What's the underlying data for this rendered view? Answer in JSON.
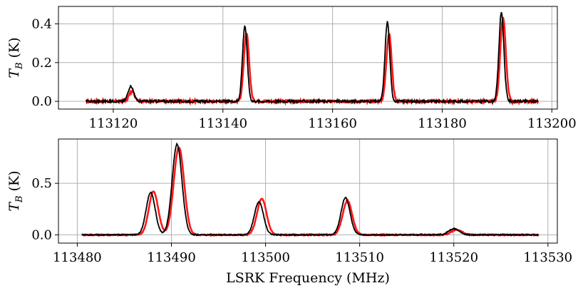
{
  "chart_data": [
    {
      "type": "line",
      "title": "",
      "xlabel": "",
      "ylabel": "T_B (K)",
      "ylabel_main": "T",
      "ylabel_sub": "B",
      "ylabel_unit": " (K)",
      "xlim": [
        113110,
        113201
      ],
      "ylim": [
        -0.04,
        0.49
      ],
      "xticks": [
        113120,
        113140,
        113160,
        113180,
        113200
      ],
      "yticks": [
        0.0,
        0.2,
        0.4
      ],
      "ytick_labels": [
        "0.0",
        "0.2",
        "0.4"
      ],
      "grid": true,
      "legend": "none",
      "x_range": [
        113115,
        113197.5
      ],
      "baseline": 0.0,
      "noise": 0.006,
      "series": [
        {
          "color": "#ff0000",
          "lines": [
            {
              "center": 113123.4,
              "amp": 0.05,
              "width": 0.55
            },
            {
              "center": 113144.3,
              "amp": 0.35,
              "width": 0.48
            },
            {
              "center": 113170.3,
              "amp": 0.35,
              "width": 0.48
            },
            {
              "center": 113191.1,
              "amp": 0.43,
              "width": 0.5
            }
          ]
        },
        {
          "color": "#000000",
          "lines": [
            {
              "center": 113123.2,
              "amp": 0.08,
              "width": 0.5
            },
            {
              "center": 113144.0,
              "amp": 0.39,
              "width": 0.43
            },
            {
              "center": 113170.0,
              "amp": 0.41,
              "width": 0.43
            },
            {
              "center": 113190.8,
              "amp": 0.46,
              "width": 0.45
            }
          ]
        }
      ]
    },
    {
      "type": "line",
      "title": "",
      "xlabel": "LSRK Frequency (MHz)",
      "ylabel": "T_B (K)",
      "ylabel_main": "T",
      "ylabel_sub": "B",
      "ylabel_unit": " (K)",
      "xlim": [
        113478,
        113531
      ],
      "ylim": [
        -0.08,
        0.93
      ],
      "xticks": [
        113480,
        113490,
        113500,
        113510,
        113520,
        113530
      ],
      "yticks": [
        0.0,
        0.5
      ],
      "ytick_labels": [
        "0.0",
        "0.5"
      ],
      "grid": true,
      "legend": "none",
      "x_range": [
        113480.5,
        113529
      ],
      "baseline": 0.0,
      "noise": 0.005,
      "series": [
        {
          "color": "#ff0000",
          "lines": [
            {
              "center": 113488.1,
              "amp": 0.42,
              "width": 0.5
            },
            {
              "center": 113490.8,
              "amp": 0.85,
              "width": 0.55
            },
            {
              "center": 113499.6,
              "amp": 0.35,
              "width": 0.5
            },
            {
              "center": 113508.7,
              "amp": 0.33,
              "width": 0.5
            },
            {
              "center": 113520.3,
              "amp": 0.05,
              "width": 0.55
            }
          ]
        },
        {
          "color": "#000000",
          "lines": [
            {
              "center": 113487.8,
              "amp": 0.41,
              "width": 0.48
            },
            {
              "center": 113490.6,
              "amp": 0.88,
              "width": 0.52
            },
            {
              "center": 113499.3,
              "amp": 0.32,
              "width": 0.48
            },
            {
              "center": 113508.5,
              "amp": 0.36,
              "width": 0.48
            },
            {
              "center": 113520.0,
              "amp": 0.06,
              "width": 0.55
            }
          ]
        }
      ]
    }
  ]
}
